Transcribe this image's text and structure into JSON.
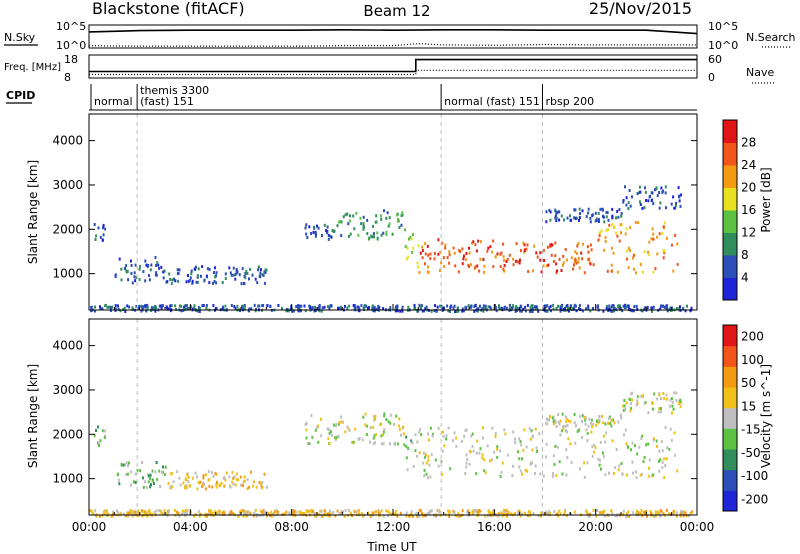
{
  "chart_data": [
    {
      "type": "line",
      "title": "Blackstone (fitACF)",
      "subtitle_center": "Beam 12",
      "date": "25/Nov/2015",
      "left_label": "N.Sky",
      "right_label": "N.Search",
      "left_ticks": [
        "10^5",
        "10^0"
      ],
      "right_ticks": [
        "10^5",
        "10^0"
      ],
      "series": [
        {
          "name": "N.Sky",
          "style": "solid",
          "x": [
            0,
            2,
            4,
            6,
            8,
            10,
            12,
            14,
            16,
            18,
            20,
            22,
            24
          ],
          "values": [
            3.6,
            3.9,
            4.0,
            4.0,
            4.0,
            4.1,
            4.0,
            4.1,
            4.1,
            4.0,
            4.0,
            4.0,
            3.2
          ]
        },
        {
          "name": "N.Search",
          "style": "dotted",
          "x": [
            0,
            2,
            4,
            6,
            8,
            10,
            12,
            13,
            14,
            16,
            18,
            20,
            22,
            24
          ],
          "values": [
            0.3,
            0.2,
            0.2,
            0.2,
            0.2,
            0.3,
            0.3,
            0.8,
            0.5,
            0.4,
            0.6,
            0.5,
            0.5,
            0.5
          ]
        }
      ]
    },
    {
      "type": "line",
      "left_label": "Freq. [MHz]",
      "right_label": "Nave",
      "left_ticks": [
        "18",
        "8"
      ],
      "right_ticks": [
        "60",
        "0"
      ],
      "series": [
        {
          "name": "Freq.",
          "style": "solid",
          "x": [
            0,
            12.9,
            12.9,
            24
          ],
          "values": [
            10.6,
            10.6,
            16.3,
            16.3
          ]
        },
        {
          "name": "Nave",
          "style": "dotted",
          "x": [
            0,
            12.9,
            12.9,
            24
          ],
          "values": [
            7,
            7,
            19,
            19
          ]
        }
      ]
    },
    {
      "type": "table",
      "label": "CPID",
      "segments": [
        {
          "start": 0,
          "label": "normal"
        },
        {
          "start": 1.9,
          "label": "themis 3300",
          "label2": "(fast) 151"
        },
        {
          "start": 13.9,
          "label": "normal (fast) 151"
        },
        {
          "start": 17.9,
          "label": "rbsp 200"
        }
      ]
    },
    {
      "type": "heatmap",
      "ylabel": "Slant Range [km]",
      "yticks": [
        1000,
        2000,
        3000,
        4000
      ],
      "ylim": [
        180,
        4600
      ],
      "xlim": [
        0,
        24
      ],
      "colorbar": {
        "label": "Power [dB]",
        "ticks": [
          "4",
          "8",
          "12",
          "16",
          "20",
          "24",
          "28"
        ],
        "colors": [
          "#1d25d6",
          "#2c4fb7",
          "#2f8e5c",
          "#5cc244",
          "#e8e020",
          "#f49a12",
          "#f2541a",
          "#e01616"
        ]
      },
      "bands": [
        {
          "x0": 0.1,
          "x1": 0.6,
          "r0": 1700,
          "r1": 2200,
          "level": 1
        },
        {
          "x0": 1.0,
          "x1": 3.0,
          "r0": 820,
          "r1": 1400,
          "level": 1
        },
        {
          "x0": 3.0,
          "x1": 7.0,
          "r0": 800,
          "r1": 1200,
          "level": 1
        },
        {
          "x0": 8.5,
          "x1": 9.6,
          "r0": 1800,
          "r1": 2150,
          "level": 1
        },
        {
          "x0": 9.6,
          "x1": 11.5,
          "r0": 1800,
          "r1": 2400,
          "level": 2
        },
        {
          "x0": 11.5,
          "x1": 12.4,
          "r0": 1900,
          "r1": 2500,
          "level": 2
        },
        {
          "x0": 12.4,
          "x1": 13.0,
          "r0": 1100,
          "r1": 2150,
          "level": 4
        },
        {
          "x0": 13.0,
          "x1": 16.0,
          "r0": 1050,
          "r1": 1800,
          "level": 6
        },
        {
          "x0": 16.0,
          "x1": 20.0,
          "r0": 1050,
          "r1": 1750,
          "level": 6
        },
        {
          "x0": 20.0,
          "x1": 23.2,
          "r0": 1050,
          "r1": 2200,
          "level": 5
        },
        {
          "x0": 18.0,
          "x1": 21.0,
          "r0": 2200,
          "r1": 2500,
          "level": 1
        },
        {
          "x0": 21.0,
          "x1": 23.4,
          "r0": 2500,
          "r1": 3000,
          "level": 1
        },
        {
          "x0": 0.0,
          "x1": 23.8,
          "r0": 180,
          "r1": 320,
          "level": 1
        }
      ]
    },
    {
      "type": "heatmap",
      "ylabel": "Slant Range [km]",
      "xlabel": "Time UT",
      "xticks": [
        "00:00",
        "04:00",
        "08:00",
        "12:00",
        "16:00",
        "20:00",
        "00:00"
      ],
      "yticks": [
        1000,
        2000,
        3000,
        4000
      ],
      "ylim": [
        180,
        4600
      ],
      "xlim": [
        0,
        24
      ],
      "colorbar": {
        "label": "Velocity [m s^-1]",
        "ticks": [
          "200",
          "100",
          "50",
          "15",
          "-15",
          "-50",
          "-100",
          "-200"
        ],
        "colors": [
          "#1d25d6",
          "#2c4fb7",
          "#2f8e5c",
          "#5cc244",
          "#bfbfbf",
          "#f0c018",
          "#f49a12",
          "#f2541a",
          "#e01616"
        ]
      },
      "bands": [
        {
          "x0": 0.1,
          "x1": 0.6,
          "r0": 1700,
          "r1": 2200,
          "level": 3
        },
        {
          "x0": 1.0,
          "x1": 3.0,
          "r0": 820,
          "r1": 1400,
          "level": 3
        },
        {
          "x0": 3.0,
          "x1": 7.0,
          "r0": 800,
          "r1": 1200,
          "level": 5
        },
        {
          "x0": 8.5,
          "x1": 12.4,
          "r0": 1800,
          "r1": 2500,
          "level": 4
        },
        {
          "x0": 12.4,
          "x1": 13.0,
          "r0": 1100,
          "r1": 2150,
          "level": 3
        },
        {
          "x0": 13.0,
          "x1": 23.2,
          "r0": 1050,
          "r1": 2200,
          "level": 4
        },
        {
          "x0": 18.0,
          "x1": 21.0,
          "r0": 2200,
          "r1": 2500,
          "level": 4
        },
        {
          "x0": 21.0,
          "x1": 23.4,
          "r0": 2500,
          "r1": 3000,
          "level": 4
        },
        {
          "x0": 0.0,
          "x1": 23.8,
          "r0": 180,
          "r1": 320,
          "level": 5
        }
      ]
    }
  ]
}
